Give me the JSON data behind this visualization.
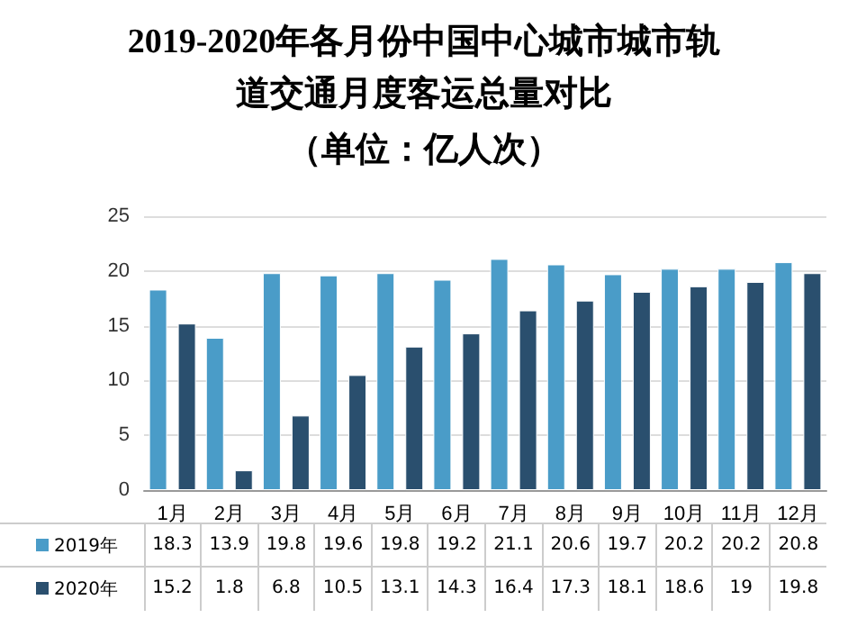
{
  "chart_data": {
    "type": "bar",
    "title": "2019-2020年各月份中国中心城市城市轨道交通月度客运总量对比",
    "subtitle": "（单位：亿人次）",
    "categories": [
      "1月",
      "2月",
      "3月",
      "4月",
      "5月",
      "6月",
      "7月",
      "8月",
      "9月",
      "10月",
      "11月",
      "12月"
    ],
    "series": [
      {
        "name": "2019年",
        "color": "#4a9cc8",
        "values": [
          18.3,
          13.9,
          19.8,
          19.6,
          19.8,
          19.2,
          21.1,
          20.6,
          19.7,
          20.2,
          20.2,
          20.8
        ]
      },
      {
        "name": "2020年",
        "color": "#2a4f6e",
        "values": [
          15.2,
          1.8,
          6.8,
          10.5,
          13.1,
          14.3,
          16.4,
          17.3,
          18.1,
          18.6,
          19,
          19.8
        ]
      }
    ],
    "ylim": [
      0,
      25
    ],
    "yticks": [
      0,
      5,
      10,
      15,
      20,
      25
    ],
    "grid": "y",
    "legend": "bottom",
    "data_labels": true
  }
}
